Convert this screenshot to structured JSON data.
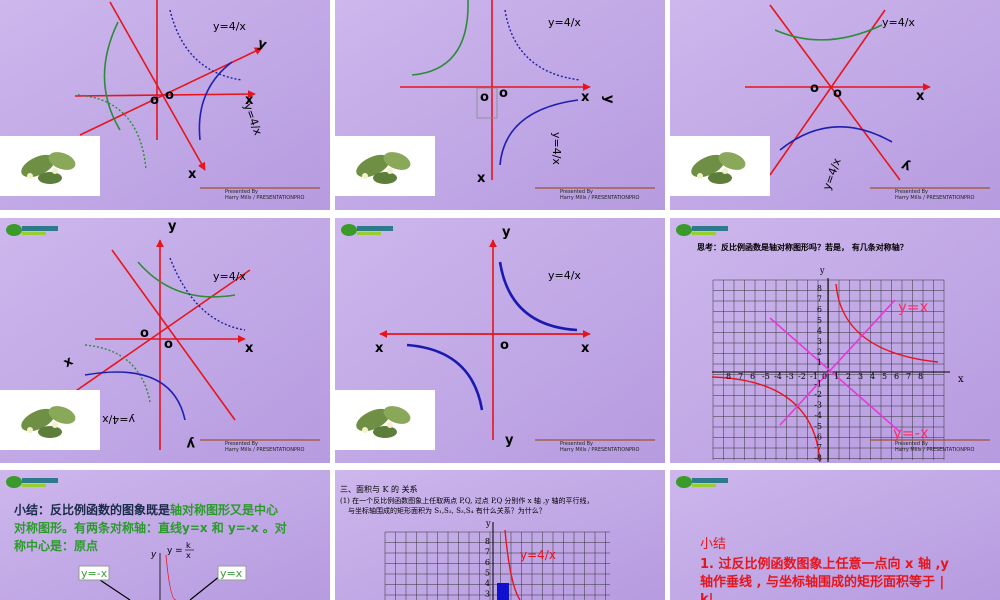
{
  "slides": [
    {
      "labels": [
        "y=4/x",
        "y",
        "o",
        "o",
        "x",
        "y=4/x",
        "x"
      ],
      "footer": [
        "Presented By",
        "Harry Mills / PRESENTATIONPRO"
      ]
    },
    {
      "labels": [
        "y=4/x",
        "o",
        "o",
        "x",
        "y",
        "y=4/x",
        "x"
      ],
      "footer": [
        "Presented By",
        "Harry Mills / PRESENTATIONPRO"
      ]
    },
    {
      "labels": [
        "y=4/x",
        "o",
        "o",
        "x",
        "y",
        "y=4/x"
      ],
      "footer": [
        "Presented By",
        "Harry Mills / PRESENTATIONPRO"
      ]
    },
    {
      "labels": [
        "y",
        "y=4/x",
        "o",
        "o",
        "x",
        "x",
        "y=4/x",
        "y"
      ],
      "footer": [
        "Presented By",
        "Harry Mills / PRESENTATIONPRO"
      ]
    },
    {
      "labels": [
        "y",
        "y=4/x",
        "x",
        "o",
        "x",
        "y"
      ],
      "footer": [
        "Presented By",
        "Harry Mills / PRESENTATIONPRO"
      ]
    },
    {
      "title": "思考：反比例函数是轴对称图形吗？若是， 有几条对称轴？",
      "labels": [
        "y",
        "x",
        "y=x",
        "y=-x"
      ],
      "xticks": [
        "8",
        "7",
        "6",
        "-5",
        "-4",
        "-3",
        "-2",
        "-1",
        "0",
        "1",
        "2",
        "3",
        "4",
        "5",
        "6",
        "7",
        "8"
      ],
      "yticks": [
        "8",
        "7",
        "6",
        "5",
        "4",
        "3",
        "2",
        "1",
        "-1",
        "-2",
        "-3",
        "-4",
        "-5",
        "-6",
        "-7",
        "-8"
      ],
      "footer": [
        "Presented By",
        "Harry Mills / PRESENTATIONPRO"
      ]
    },
    {
      "lines": [
        [
          "小结：反比例函数的图象既是",
          "轴对称图形又是中心"
        ],
        [
          "对称图形。有两条对称轴：直线y=x 和  y=-x 。对"
        ],
        [
          "称中心是：原点"
        ]
      ],
      "labels": [
        "y=-x",
        "y=x",
        "y",
        "y =",
        "k",
        "x"
      ]
    },
    {
      "title": "三、面积与 K 的 关系",
      "lines": [
        "(1) 在一个反比例函数图象上任取两点 P,Q, 过点 P,Q 分别作 x 轴 ,y 轴的平行线，",
        "与坐标轴围成的矩形面积为 S₁,S₂, S₃,S₄ 有什么关系？为什么？"
      ],
      "labels": [
        "y",
        "y=4/x"
      ],
      "yticks": [
        "8",
        "7",
        "6",
        "5",
        "4",
        "3"
      ]
    },
    {
      "title": "小结",
      "lines": [
        "1. 过反比例函数图象上任意一点向 x 轴 ,y",
        "轴作垂线 , 与坐标轴围成的矩形面积等于 |",
        "k|."
      ]
    }
  ]
}
